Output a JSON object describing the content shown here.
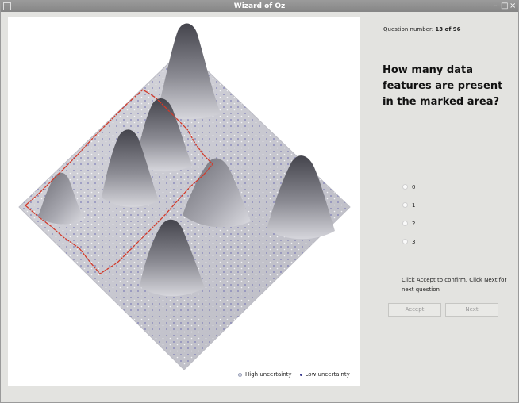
{
  "window": {
    "title": "Wizard of Oz",
    "buttons": [
      "–",
      "□",
      "×"
    ]
  },
  "legend": {
    "high_label": "High uncertainty",
    "low_label": "Low uncertainty",
    "high_color": "#cfd3e0",
    "low_color": "#3d3d90"
  },
  "question_number": {
    "label": "Question number:",
    "value": "13 of 96"
  },
  "question": "How many data features are present in the marked area?",
  "options": [
    "0",
    "1",
    "2",
    "3"
  ],
  "instructions": "Click Accept to confirm. Click Next for next question",
  "buttons": {
    "accept": "Accept",
    "next": "Next"
  },
  "colors": {
    "marked_area_outline": "#d23a2a",
    "peak_dark": "#4a4a52",
    "terrain": "#cfcfd6"
  }
}
